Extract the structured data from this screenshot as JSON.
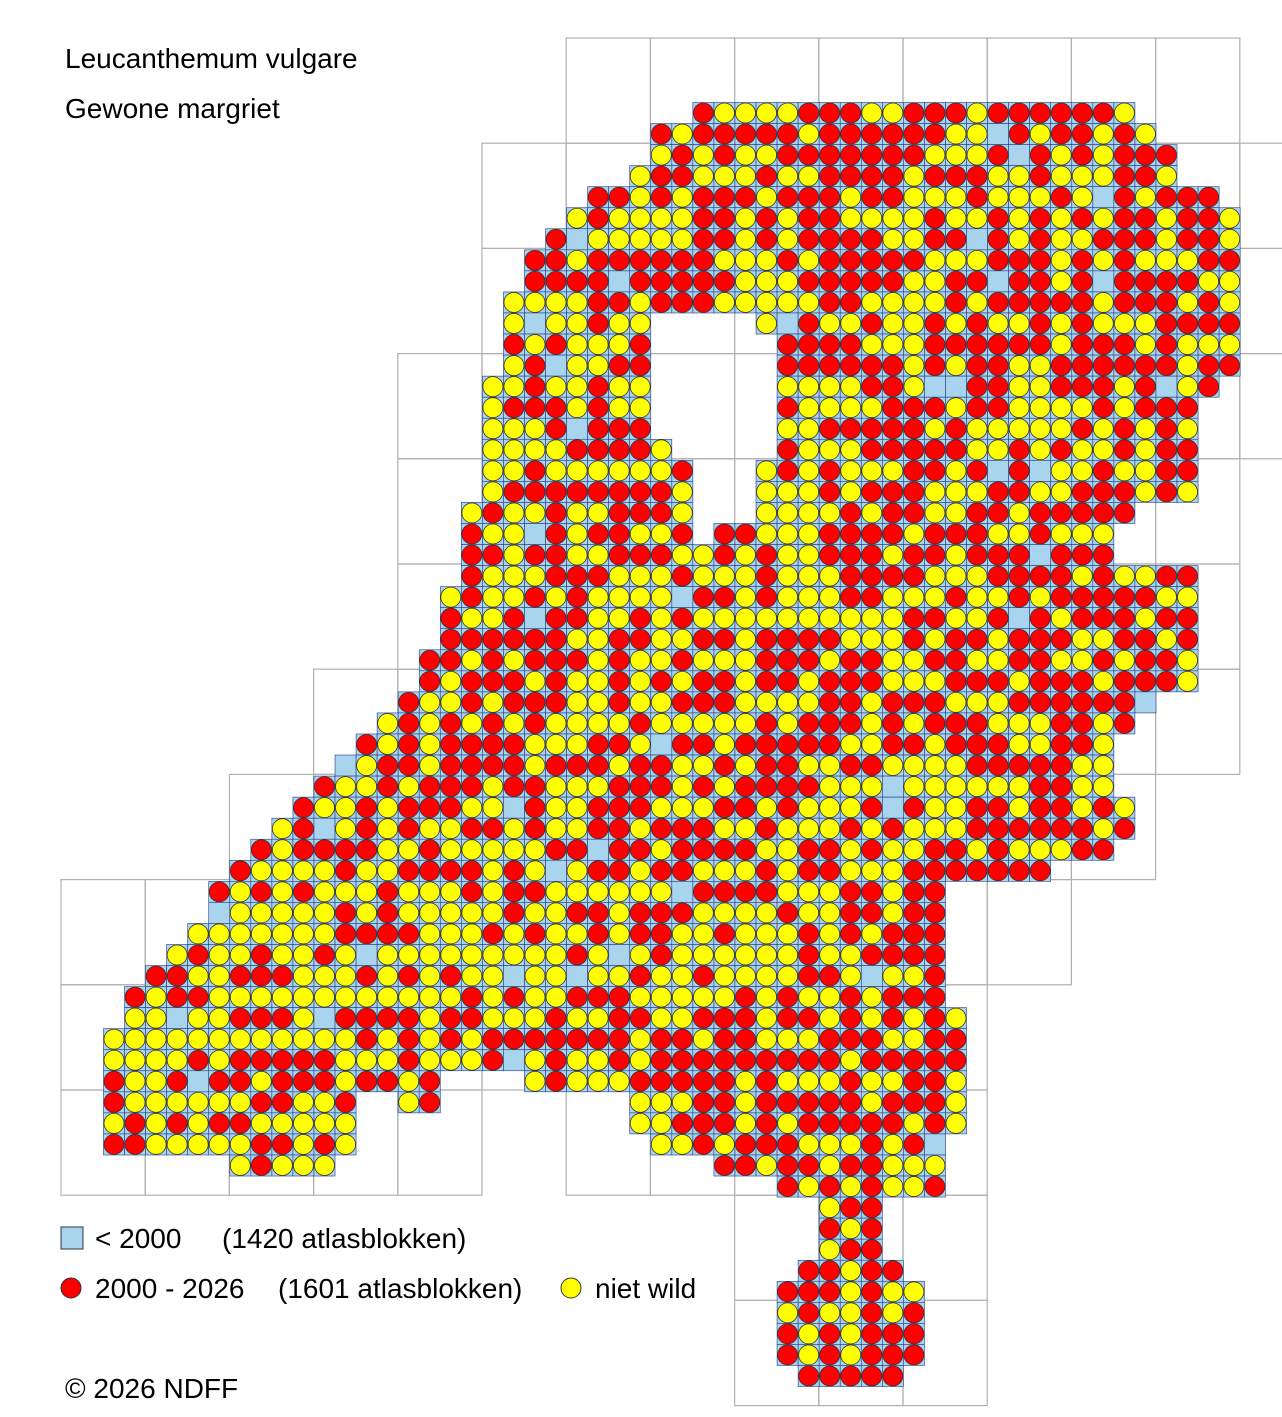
{
  "title": "Leucanthemum vulgare",
  "subtitle": "Gewone margriet",
  "legend": [
    {
      "label": "< 2000",
      "count": "(1420 atlasblokken)"
    },
    {
      "label": "2000 - 2026",
      "count": "(1601 atlasblokken)"
    },
    {
      "label": "niet wild"
    }
  ],
  "copyright": "© 2026 NDFF"
}
